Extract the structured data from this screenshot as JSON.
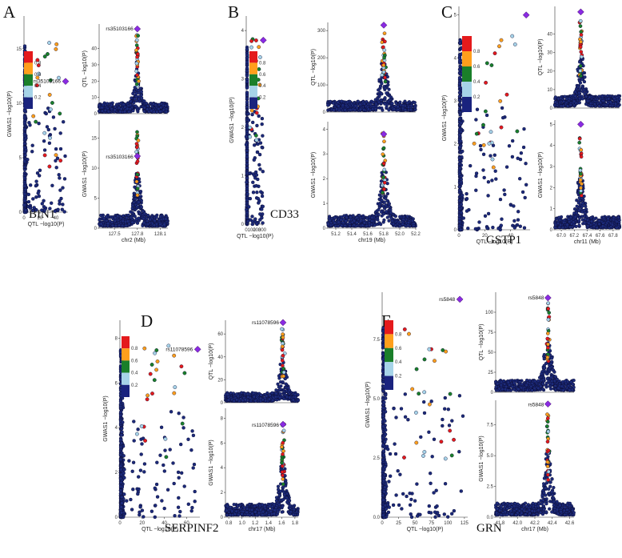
{
  "figure": {
    "labels": {
      "A": "A",
      "B": "B",
      "C": "C",
      "D": "D",
      "E": "E"
    }
  },
  "legend": {
    "ticks": [
      "0.8",
      "0.6",
      "0.4",
      "0.2"
    ],
    "colors": [
      "#e41a1c",
      "#ff9f1c",
      "#1a7f2a",
      "#a6d3e8",
      "#1a237e"
    ]
  },
  "colors": {
    "base": "#1c2a7a",
    "edge": "#0a0a30",
    "lead": "#8a2be2",
    "r08": "#e41a1c",
    "r06": "#ff9f1c",
    "r04": "#1a7f2a",
    "r02": "#a6d3e8"
  },
  "chart_data": [
    {
      "panel": "A",
      "gene": "BIN1",
      "type": "scatter",
      "lead_snp": "rs35103166",
      "chrom_label": "chr2 (Mb)",
      "compare": {
        "xlabel": "QTL −log10(P)",
        "ylabel": "GWAS1 −log10(P)",
        "xlim": [
          0,
          55
        ],
        "ylim": [
          0,
          18
        ],
        "xticks": [
          "0",
          "20",
          "40"
        ],
        "yticks": [
          "0",
          "5",
          "10",
          "15"
        ],
        "lead": [
          52,
          12
        ]
      },
      "qtl": {
        "ylabel": "QTL −log10(P)",
        "xlim": [
          127.3,
          128.2
        ],
        "ylim": [
          0,
          55
        ],
        "yticks": [
          "0",
          "10",
          "20",
          "30",
          "40"
        ],
        "peak": 127.8,
        "lead_y": 52
      },
      "gwas": {
        "ylabel": "GWAS1 −log10(P)",
        "xlim": [
          127.3,
          128.2
        ],
        "ylim": [
          0,
          18
        ],
        "yticks": [
          "0",
          "5",
          "10",
          "15"
        ],
        "xticks": [
          "127.5",
          "127.8",
          "128.1"
        ],
        "peak": 127.8,
        "lead_y": 12
      }
    },
    {
      "panel": "B",
      "gene": "CD33",
      "type": "scatter",
      "lead_snp": "",
      "chrom_label": "chr19 (Mb)",
      "compare": {
        "xlabel": "QTL −log10(P)",
        "ylabel": "GWAS1 −log10(P)",
        "xlim": [
          0,
          330
        ],
        "ylim": [
          0,
          4.3
        ],
        "xticks": [
          "0",
          "100",
          "200",
          "300"
        ],
        "yticks": [
          "0",
          "1",
          "2",
          "3",
          "4"
        ],
        "lead": [
          320,
          3.8
        ]
      },
      "qtl": {
        "ylabel": "QTL −log10(P)",
        "xlim": [
          51.1,
          52.2
        ],
        "ylim": [
          0,
          330
        ],
        "yticks": [
          "0",
          "100",
          "200",
          "300"
        ],
        "peak": 51.8,
        "lead_y": 320
      },
      "gwas": {
        "ylabel": "GWAS1 −log10(P)",
        "xlim": [
          51.1,
          52.2
        ],
        "ylim": [
          0,
          4.3
        ],
        "yticks": [
          "0",
          "1",
          "2",
          "3",
          "4"
        ],
        "xticks": [
          "51.2",
          "51.4",
          "51.6",
          "51.8",
          "52.0",
          "52.2"
        ],
        "peak": 51.8,
        "lead_y": 3.8
      }
    },
    {
      "panel": "C",
      "gene": "GSTP1",
      "type": "scatter",
      "lead_snp": "",
      "chrom_label": "chr11 (Mb)",
      "compare": {
        "xlabel": "QTL −log10(P)",
        "ylabel": "GWAS1 −log10(P)",
        "xlim": [
          0,
          55
        ],
        "ylim": [
          0,
          5.2
        ],
        "xticks": [
          "0",
          "20",
          "40"
        ],
        "yticks": [
          "0",
          "1",
          "2",
          "3",
          "4",
          "5"
        ],
        "lead": [
          52,
          5.0
        ]
      },
      "qtl": {
        "ylabel": "QTL −log10(P)",
        "xlim": [
          66.9,
          67.9
        ],
        "ylim": [
          0,
          55
        ],
        "yticks": [
          "0",
          "10",
          "20",
          "30",
          "40"
        ],
        "peak": 67.3,
        "lead_y": 52
      },
      "gwas": {
        "ylabel": "GWAS1 −log10(P)",
        "xlim": [
          66.9,
          67.9
        ],
        "ylim": [
          0,
          5.2
        ],
        "yticks": [
          "0",
          "1",
          "2",
          "3",
          "4",
          "5"
        ],
        "xticks": [
          "67.0",
          "67.2",
          "67.4",
          "67.6",
          "67.8"
        ],
        "peak": 67.3,
        "lead_y": 5.0
      }
    },
    {
      "panel": "D",
      "gene": "SERPINF2",
      "type": "scatter",
      "lead_snp": "rs11078596",
      "chrom_label": "chr17 (Mb)",
      "compare": {
        "xlabel": "QTL −log10(P)",
        "ylabel": "GWAS1 −log10(P)",
        "xlim": [
          0,
          72
        ],
        "ylim": [
          0,
          8.8
        ],
        "xticks": [
          "0",
          "20",
          "40",
          "60"
        ],
        "yticks": [
          "0",
          "2",
          "4",
          "6",
          "8"
        ],
        "lead": [
          70,
          7.5
        ]
      },
      "qtl": {
        "ylabel": "QTL −log10(P)",
        "xlim": [
          0.75,
          1.85
        ],
        "ylim": [
          0,
          72
        ],
        "yticks": [
          "0",
          "20",
          "40",
          "60"
        ],
        "peak": 1.62,
        "lead_y": 70
      },
      "gwas": {
        "ylabel": "GWAS1 −log10(P)",
        "xlim": [
          0.75,
          1.85
        ],
        "ylim": [
          0,
          8.8
        ],
        "yticks": [
          "0",
          "2",
          "4",
          "6",
          "8"
        ],
        "xticks": [
          "0.8",
          "1.0",
          "1.2",
          "1.4",
          "1.6",
          "1.8"
        ],
        "peak": 1.62,
        "lead_y": 7.5
      }
    },
    {
      "panel": "E",
      "gene": "GRN",
      "type": "scatter",
      "lead_snp": "rs5848",
      "chrom_label": "chr17 (Mb)",
      "compare": {
        "xlabel": "QTL −log10(P)",
        "ylabel": "GWAS1 −log10(P)",
        "xlim": [
          0,
          130
        ],
        "ylim": [
          0,
          9.5
        ],
        "xticks": [
          "0",
          "25",
          "50",
          "75",
          "100",
          "125"
        ],
        "yticks": [
          "0.0",
          "2.5",
          "5.0",
          "7.5"
        ],
        "lead": [
          118,
          9.2
        ]
      },
      "qtl": {
        "ylabel": "QTL −log10(P)",
        "xlim": [
          41.75,
          42.65
        ],
        "ylim": [
          0,
          125
        ],
        "yticks": [
          "0",
          "25",
          "50",
          "75",
          "100"
        ],
        "peak": 42.35,
        "lead_y": 118
      },
      "gwas": {
        "ylabel": "GWAS1 −log10(P)",
        "xlim": [
          41.75,
          42.65
        ],
        "ylim": [
          0,
          9.5
        ],
        "yticks": [
          "0.0",
          "2.5",
          "5.0",
          "7.5"
        ],
        "xticks": [
          "41.8",
          "42.0",
          "42.2",
          "42.4",
          "42.6"
        ],
        "peak": 42.35,
        "lead_y": 9.2
      }
    }
  ]
}
